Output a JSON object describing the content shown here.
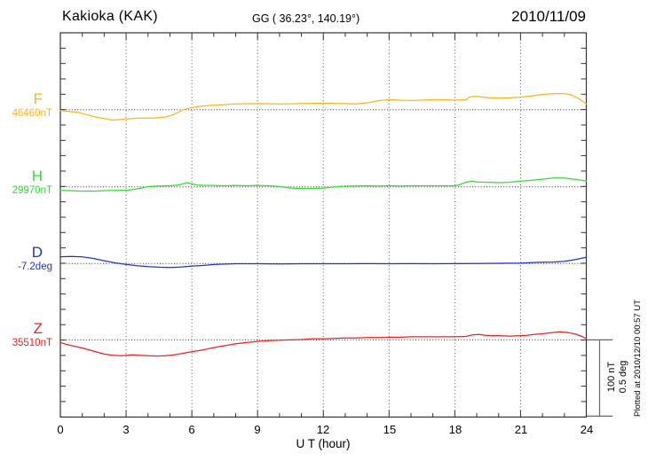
{
  "header": {
    "station": "Kakioka (KAK)",
    "coordinates": "GG ( 36.23°, 140.19°)",
    "date": "2010/11/09"
  },
  "xaxis": {
    "label": "U T (hour)",
    "ticks": [
      "0",
      "3",
      "6",
      "9",
      "12",
      "15",
      "18",
      "21",
      "24"
    ]
  },
  "scale_bar": {
    "labels": [
      "100 nT",
      "0.5 deg"
    ]
  },
  "footer_note": "Plotted at 2010/12/10 00:57 UT",
  "channels": [
    {
      "id": "F",
      "label": "F",
      "base_value": "46460nT",
      "color": "#FFB41E"
    },
    {
      "id": "H",
      "label": "H",
      "base_value": "29970nT",
      "color": "#33DD33"
    },
    {
      "id": "D",
      "label": "D",
      "base_value": "-7.2deg",
      "color": "#2232CC"
    },
    {
      "id": "Z",
      "label": "Z",
      "base_value": "35510nT",
      "color": "#EE2222"
    }
  ],
  "chart_data": {
    "type": "line",
    "title": "Kakioka (KAK) geomagnetic variations 2010/11/09",
    "xlabel": "U T (hour)",
    "x_range": [
      0,
      24
    ],
    "x_major_tick": 3,
    "x_minor_tick": 1,
    "grid": "dotted vertical lines every 3 h; dotted horizontal baseline per channel",
    "legend_position": "left margin channel labels",
    "scale": {
      "nT_per_division": 100,
      "deg_per_division": 0.5
    },
    "series": [
      {
        "name": "F",
        "baseline_value": "46460nT",
        "units": "nT offset from baseline",
        "points": [
          [
            0,
            -1
          ],
          [
            0.8,
            -3.5
          ],
          [
            1.6,
            -9.5
          ],
          [
            2.4,
            -13.5
          ],
          [
            3,
            -12
          ],
          [
            3.6,
            -11
          ],
          [
            4.2,
            -11
          ],
          [
            4.8,
            -9.5
          ],
          [
            5.2,
            -6
          ],
          [
            5.6,
            0
          ],
          [
            6,
            3
          ],
          [
            6.5,
            5
          ],
          [
            7,
            6
          ],
          [
            8,
            7.5
          ],
          [
            9,
            8
          ],
          [
            10,
            7.5
          ],
          [
            11,
            8
          ],
          [
            12,
            8.5
          ],
          [
            13,
            8
          ],
          [
            13.5,
            7.5
          ],
          [
            14,
            9
          ],
          [
            14.6,
            12
          ],
          [
            15,
            13
          ],
          [
            15.5,
            12.5
          ],
          [
            16,
            12
          ],
          [
            16.5,
            12.5
          ],
          [
            17,
            13
          ],
          [
            17.5,
            13
          ],
          [
            18,
            12.5
          ],
          [
            18.5,
            13
          ],
          [
            18.7,
            17
          ],
          [
            19,
            17.5
          ],
          [
            19.3,
            16.5
          ],
          [
            19.6,
            15.5
          ],
          [
            20,
            15
          ],
          [
            20.5,
            15.5
          ],
          [
            21,
            16.5
          ],
          [
            21.5,
            18
          ],
          [
            22,
            20
          ],
          [
            22.5,
            21
          ],
          [
            23,
            21
          ],
          [
            23.3,
            19.5
          ],
          [
            23.6,
            15.5
          ],
          [
            23.8,
            11.5
          ],
          [
            24,
            7.5
          ]
        ]
      },
      {
        "name": "H",
        "baseline_value": "29970nT",
        "units": "nT offset from baseline",
        "points": [
          [
            0,
            -4.5
          ],
          [
            0.5,
            -5
          ],
          [
            1,
            -5.5
          ],
          [
            1.5,
            -5.5
          ],
          [
            2,
            -5
          ],
          [
            2.5,
            -4.5
          ],
          [
            3,
            -4.5
          ],
          [
            3.5,
            -2.5
          ],
          [
            3.8,
            -1
          ],
          [
            4,
            0.5
          ],
          [
            4.5,
            1
          ],
          [
            5,
            1.5
          ],
          [
            5.4,
            2.5
          ],
          [
            5.8,
            5.5
          ],
          [
            6.2,
            2.5
          ],
          [
            6.6,
            2
          ],
          [
            7,
            2
          ],
          [
            7.5,
            1.5
          ],
          [
            8,
            2
          ],
          [
            8.5,
            1.5
          ],
          [
            9,
            2
          ],
          [
            9.5,
            1.5
          ],
          [
            10,
            0.5
          ],
          [
            10.5,
            -1.5
          ],
          [
            11,
            -2
          ],
          [
            11.5,
            -2
          ],
          [
            12,
            -1.5
          ],
          [
            12.7,
            0.5
          ],
          [
            13,
            1
          ],
          [
            13.5,
            1
          ],
          [
            14,
            1.5
          ],
          [
            14.5,
            1
          ],
          [
            15,
            1.5
          ],
          [
            15.5,
            1
          ],
          [
            16,
            1.5
          ],
          [
            16.5,
            1.5
          ],
          [
            17,
            1.5
          ],
          [
            17.5,
            1.5
          ],
          [
            18,
            1.5
          ],
          [
            18.2,
            2.5
          ],
          [
            18.5,
            6
          ],
          [
            18.8,
            7.5
          ],
          [
            19,
            6.5
          ],
          [
            19.5,
            6
          ],
          [
            20,
            5.5
          ],
          [
            20.5,
            6
          ],
          [
            21,
            7.5
          ],
          [
            21.5,
            8.5
          ],
          [
            22,
            10
          ],
          [
            22.5,
            11.5
          ],
          [
            23,
            11.5
          ],
          [
            23.3,
            10.5
          ],
          [
            23.6,
            9.5
          ],
          [
            24,
            7.5
          ]
        ]
      },
      {
        "name": "D",
        "baseline_value": "-7.2deg",
        "units": "deg offset from baseline",
        "points": [
          [
            0,
            0.044
          ],
          [
            0.5,
            0.046
          ],
          [
            1,
            0.043
          ],
          [
            1.5,
            0.033
          ],
          [
            2,
            0.018
          ],
          [
            2.5,
            0.004
          ],
          [
            3,
            -0.006
          ],
          [
            3.5,
            -0.015
          ],
          [
            4,
            -0.021
          ],
          [
            4.5,
            -0.024
          ],
          [
            5,
            -0.026
          ],
          [
            5.5,
            -0.023
          ],
          [
            6,
            -0.017
          ],
          [
            6.5,
            -0.013
          ],
          [
            7,
            -0.007
          ],
          [
            7.5,
            -0.004
          ],
          [
            8,
            -0.002
          ],
          [
            9,
            -0.002
          ],
          [
            10,
            -0.003
          ],
          [
            11,
            -0.002
          ],
          [
            12,
            -0.002
          ],
          [
            13,
            -0.002
          ],
          [
            14,
            -0.001
          ],
          [
            15,
            -0.002
          ],
          [
            16,
            -0.001
          ],
          [
            17,
            -0.002
          ],
          [
            18,
            -0.001
          ],
          [
            19,
            0
          ],
          [
            20,
            0.001
          ],
          [
            21,
            0.003
          ],
          [
            21.5,
            0.006
          ],
          [
            22,
            0.008
          ],
          [
            22.5,
            0.009
          ],
          [
            23,
            0.014
          ],
          [
            23.4,
            0.023
          ],
          [
            23.7,
            0.031
          ],
          [
            24,
            0.04
          ]
        ]
      },
      {
        "name": "Z",
        "baseline_value": "35510nT",
        "units": "nT offset from baseline",
        "points": [
          [
            0,
            -3.5
          ],
          [
            0.3,
            -6
          ],
          [
            0.6,
            -8
          ],
          [
            1,
            -10.5
          ],
          [
            1.5,
            -14.5
          ],
          [
            2,
            -18.5
          ],
          [
            2.4,
            -20
          ],
          [
            2.8,
            -20.5
          ],
          [
            3,
            -20
          ],
          [
            3.3,
            -19.5
          ],
          [
            3.6,
            -20
          ],
          [
            4,
            -20.5
          ],
          [
            4.4,
            -21
          ],
          [
            4.8,
            -20.5
          ],
          [
            5.2,
            -19.5
          ],
          [
            5.5,
            -18
          ],
          [
            6,
            -15.5
          ],
          [
            6.5,
            -13
          ],
          [
            7,
            -10
          ],
          [
            7.5,
            -7.5
          ],
          [
            8,
            -5
          ],
          [
            8.5,
            -3.5
          ],
          [
            9,
            -2
          ],
          [
            9.5,
            -1
          ],
          [
            10,
            -0.5
          ],
          [
            10.5,
            0
          ],
          [
            11,
            0.5
          ],
          [
            11.5,
            1.5
          ],
          [
            12,
            1.5
          ],
          [
            12.5,
            2
          ],
          [
            13,
            2.5
          ],
          [
            13.5,
            2.5
          ],
          [
            14,
            3
          ],
          [
            14.5,
            3
          ],
          [
            15,
            3.5
          ],
          [
            15.5,
            3.5
          ],
          [
            16,
            4
          ],
          [
            16.5,
            4
          ],
          [
            17,
            4
          ],
          [
            17.5,
            4
          ],
          [
            18,
            4
          ],
          [
            18.5,
            4.5
          ],
          [
            18.8,
            6.5
          ],
          [
            19.1,
            7
          ],
          [
            19.4,
            6
          ],
          [
            19.7,
            5.5
          ],
          [
            20,
            5.5
          ],
          [
            20.5,
            5
          ],
          [
            21,
            5.5
          ],
          [
            21.3,
            6
          ],
          [
            21.6,
            7
          ],
          [
            22,
            8
          ],
          [
            22.4,
            9.5
          ],
          [
            22.8,
            10.5
          ],
          [
            23.2,
            9.5
          ],
          [
            23.5,
            7.5
          ],
          [
            23.8,
            4.5
          ],
          [
            24,
            1.5
          ]
        ]
      }
    ]
  }
}
